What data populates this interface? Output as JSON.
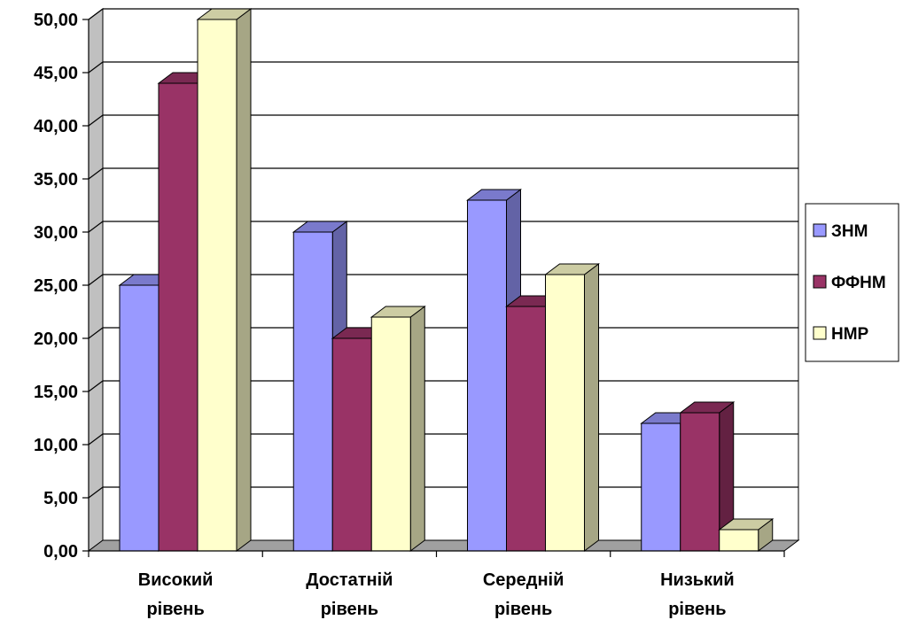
{
  "chart_data": {
    "type": "bar",
    "categories": [
      [
        "Високий",
        "рівень"
      ],
      [
        "Достатній",
        "рівень"
      ],
      [
        "Середній",
        "рівень"
      ],
      [
        "Низький",
        "рівень"
      ]
    ],
    "series": [
      {
        "name": "ЗНМ",
        "values": [
          25,
          30,
          33,
          12
        ],
        "color": "#9999ff"
      },
      {
        "name": "ФФНМ",
        "values": [
          44,
          20,
          23,
          13
        ],
        "color": "#993366"
      },
      {
        "name": "НМР",
        "values": [
          50,
          22,
          26,
          2
        ],
        "color": "#ffffcc"
      }
    ],
    "ylim": [
      0,
      50
    ],
    "yticks": [
      "0,00",
      "5,00",
      "10,00",
      "15,00",
      "20,00",
      "25,00",
      "30,00",
      "35,00",
      "40,00",
      "45,00",
      "50,00"
    ],
    "grid": true,
    "legend_position": "right",
    "style": "3d-clustered-column"
  }
}
